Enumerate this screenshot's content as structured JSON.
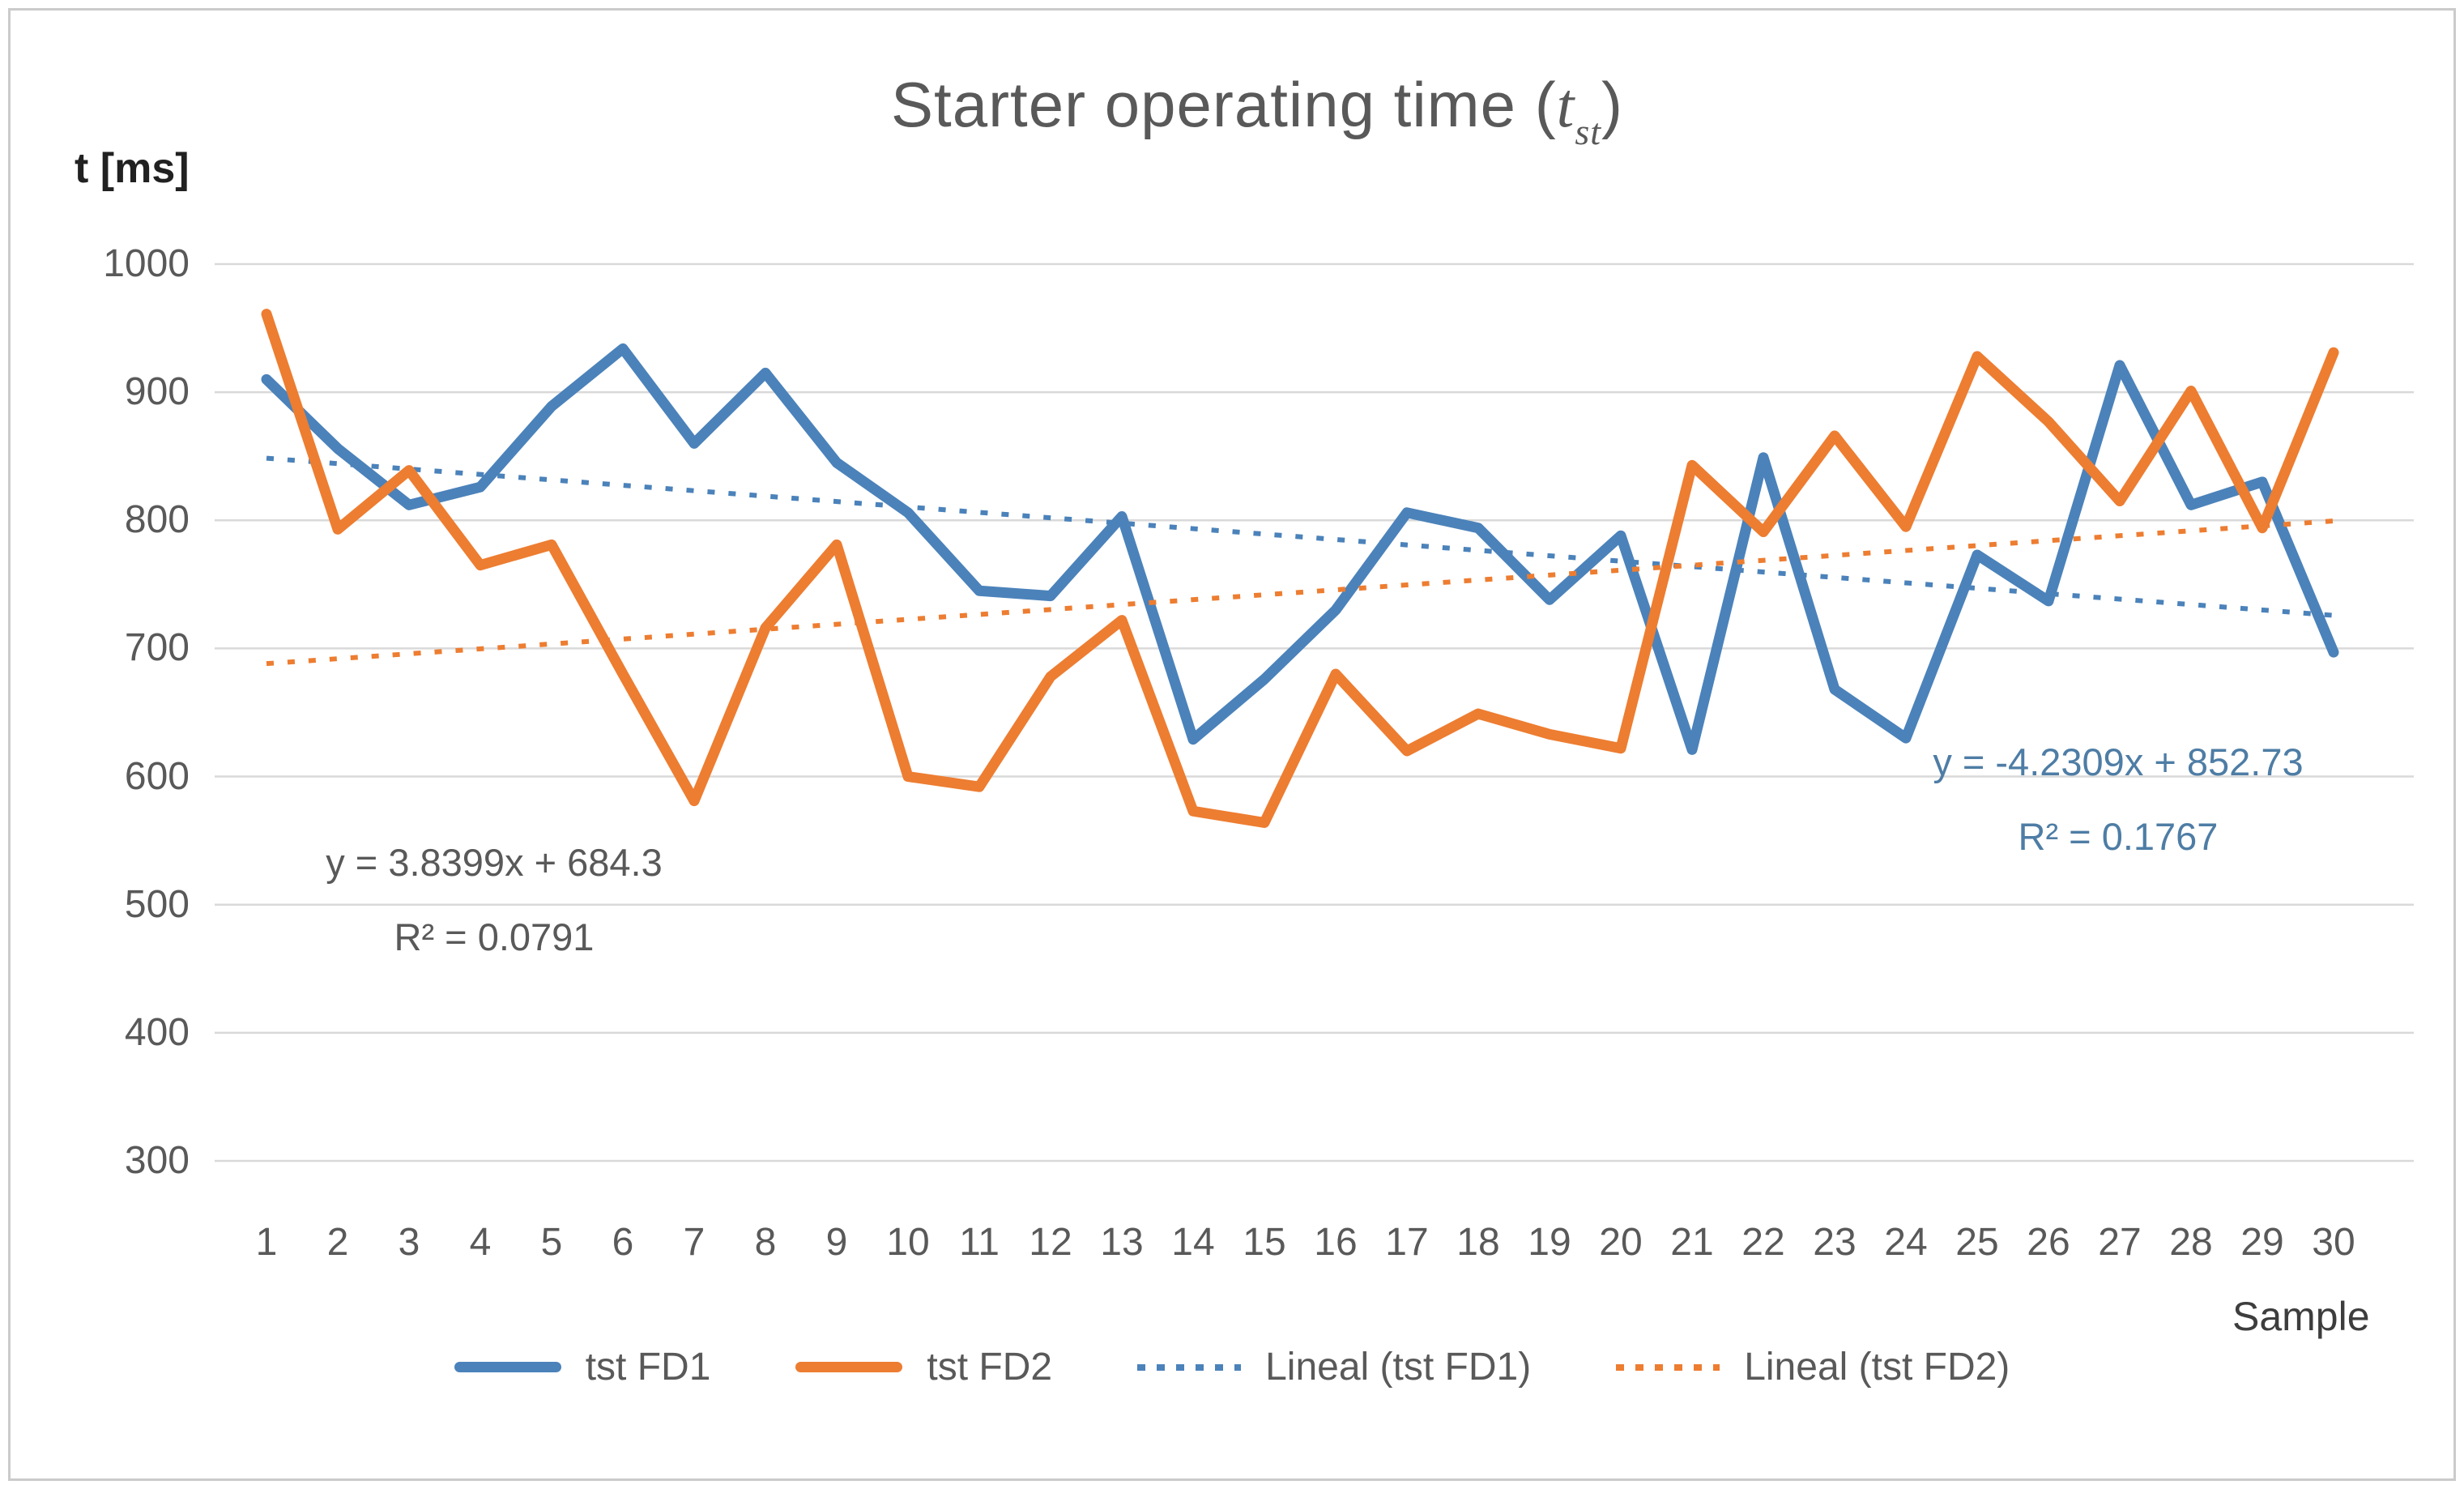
{
  "title": {
    "prefix": "Starter operating time (",
    "variable": "t",
    "subscript": "st",
    "suffix": ")"
  },
  "y_axis": {
    "label": "t [ms]",
    "ticks": [
      1000,
      900,
      800,
      700,
      600,
      500,
      400,
      300
    ]
  },
  "x_axis": {
    "label": "Sample",
    "categories": [
      1,
      2,
      3,
      4,
      5,
      6,
      7,
      8,
      9,
      10,
      11,
      12,
      13,
      14,
      15,
      16,
      17,
      18,
      19,
      20,
      21,
      22,
      23,
      24,
      25,
      26,
      27,
      28,
      29,
      30
    ]
  },
  "equations": {
    "fd2": {
      "line1": "y = 3.8399x + 684.3",
      "line2": "R² = 0.0791"
    },
    "fd1": {
      "line1": "y = -4.2309x + 852.73",
      "line2": "R² = 0.1767"
    }
  },
  "legend": [
    {
      "label": "tst FD1",
      "style": "solid",
      "color": "#4B82BA"
    },
    {
      "label": "tst FD2",
      "style": "solid",
      "color": "#ED7D31"
    },
    {
      "label": "Lineal (tst FD1)",
      "style": "dotted",
      "color": "#4B82BA"
    },
    {
      "label": "Lineal (tst FD2)",
      "style": "dotted",
      "color": "#ED7D31"
    }
  ],
  "colors": {
    "fd1": "#4B82BA",
    "fd2": "#ED7D31",
    "gridline": "#D9D9D9",
    "text": "#595959",
    "equation_fd1_text": "#4E7DA5",
    "border": "#CBCBCB"
  },
  "chart_data": {
    "type": "line",
    "title": "Starter operating time (t_st)",
    "xlabel": "Sample",
    "ylabel": "t [ms]",
    "ylim": [
      300,
      1000
    ],
    "grid": true,
    "legend_position": "bottom",
    "categories": [
      1,
      2,
      3,
      4,
      5,
      6,
      7,
      8,
      9,
      10,
      11,
      12,
      13,
      14,
      15,
      16,
      17,
      18,
      19,
      20,
      21,
      22,
      23,
      24,
      25,
      26,
      27,
      28,
      29,
      30
    ],
    "series": [
      {
        "name": "tst FD1",
        "color": "#4B82BA",
        "values": [
          910,
          856,
          812,
          826,
          889,
          934,
          860,
          915,
          845,
          806,
          745,
          741,
          803,
          629,
          676,
          730,
          806,
          794,
          738,
          788,
          621,
          849,
          668,
          630,
          773,
          737,
          921,
          812,
          830,
          697
        ]
      },
      {
        "name": "tst FD2",
        "color": "#ED7D31",
        "values": [
          961,
          793,
          839,
          765,
          781,
          680,
          581,
          716,
          781,
          600,
          592,
          678,
          722,
          573,
          564,
          680,
          620,
          649,
          633,
          622,
          843,
          791,
          866,
          795,
          928,
          877,
          815,
          901,
          794,
          931
        ]
      }
    ],
    "trendlines": [
      {
        "name": "Lineal (tst FD1)",
        "series": "tst FD1",
        "slope": -4.2309,
        "intercept": 852.73,
        "r_squared": 0.1767,
        "equation": "y = -4.2309x + 852.73",
        "color": "#4B82BA"
      },
      {
        "name": "Lineal (tst FD2)",
        "series": "tst FD2",
        "slope": 3.8399,
        "intercept": 684.3,
        "r_squared": 0.0791,
        "equation": "y = 3.8399x + 684.3",
        "color": "#ED7D31"
      }
    ]
  }
}
